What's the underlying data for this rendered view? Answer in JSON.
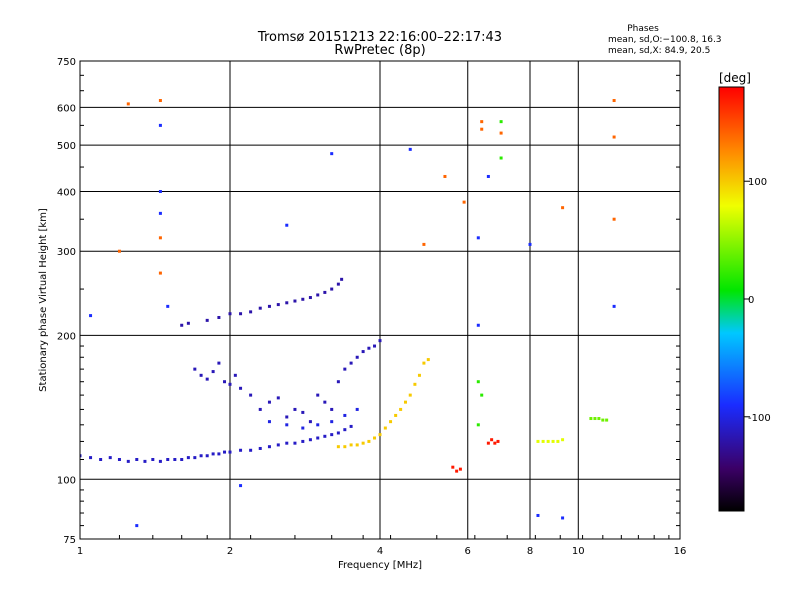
{
  "header": {
    "title_line1": "Tromsø 20151213 22:16:00–22:17:43",
    "title_line2": "RwPretec (8p)",
    "stats_title": "Phases",
    "stats_o": "mean, sd,O:−100.8, 16.3",
    "stats_x": "mean, sd,X: 84.9, 20.5"
  },
  "chart_data": {
    "type": "scatter",
    "xlabel": "Frequency [MHz]",
    "ylabel": "Stationary phase Virtual Height [km]",
    "x_scale": "log2",
    "y_scale": "log",
    "xlim": [
      1,
      16
    ],
    "ylim": [
      75,
      750
    ],
    "x_ticks": [
      1,
      2,
      4,
      6,
      8,
      10,
      16
    ],
    "y_ticks": [
      75,
      100,
      200,
      300,
      400,
      500,
      600,
      750
    ],
    "grid": true,
    "colorbar": {
      "label": "[deg]",
      "range": [
        -180,
        180
      ],
      "ticks": [
        -100,
        0,
        100
      ],
      "colormap": "rainbow (black-violet-blue-cyan-green-yellow-red)"
    },
    "series": [
      {
        "phase": -110,
        "points": [
          [
            1.0,
            112
          ],
          [
            1.05,
            111
          ],
          [
            1.1,
            110
          ],
          [
            1.15,
            111
          ],
          [
            1.2,
            110
          ],
          [
            1.25,
            109
          ],
          [
            1.3,
            110
          ],
          [
            1.35,
            109
          ],
          [
            1.4,
            110
          ],
          [
            1.45,
            109
          ],
          [
            1.5,
            110
          ],
          [
            1.55,
            110
          ],
          [
            1.6,
            110
          ],
          [
            1.65,
            111
          ],
          [
            1.7,
            111
          ],
          [
            1.75,
            112
          ],
          [
            1.8,
            112
          ],
          [
            1.85,
            113
          ],
          [
            1.9,
            113
          ],
          [
            1.95,
            114
          ],
          [
            2.0,
            114
          ],
          [
            2.1,
            115
          ],
          [
            2.2,
            115
          ],
          [
            2.3,
            116
          ],
          [
            2.4,
            117
          ],
          [
            2.5,
            118
          ],
          [
            2.6,
            119
          ],
          [
            2.7,
            119
          ],
          [
            2.8,
            120
          ],
          [
            2.9,
            121
          ],
          [
            3.0,
            122
          ],
          [
            3.1,
            123
          ],
          [
            3.2,
            124
          ],
          [
            3.3,
            125
          ],
          [
            3.4,
            127
          ],
          [
            3.5,
            129
          ]
        ]
      },
      {
        "phase": -120,
        "points": [
          [
            1.6,
            210
          ],
          [
            1.65,
            212
          ],
          [
            1.8,
            215
          ],
          [
            1.9,
            218
          ],
          [
            2.0,
            222
          ],
          [
            2.1,
            222
          ],
          [
            2.2,
            224
          ],
          [
            2.3,
            228
          ],
          [
            2.4,
            230
          ],
          [
            2.5,
            232
          ],
          [
            2.6,
            234
          ],
          [
            2.7,
            236
          ],
          [
            2.8,
            238
          ],
          [
            2.9,
            240
          ],
          [
            3.0,
            243
          ],
          [
            3.1,
            246
          ],
          [
            3.2,
            250
          ],
          [
            3.3,
            256
          ],
          [
            3.35,
            262
          ]
        ]
      },
      {
        "phase": -115,
        "points": [
          [
            1.7,
            170
          ],
          [
            1.75,
            165
          ],
          [
            1.8,
            162
          ],
          [
            1.85,
            168
          ],
          [
            1.9,
            175
          ],
          [
            1.95,
            160
          ],
          [
            2.0,
            158
          ],
          [
            2.05,
            165
          ],
          [
            2.1,
            155
          ],
          [
            2.2,
            150
          ],
          [
            2.3,
            140
          ],
          [
            2.4,
            145
          ],
          [
            2.5,
            148
          ],
          [
            2.6,
            135
          ],
          [
            2.7,
            140
          ],
          [
            2.8,
            138
          ],
          [
            2.9,
            132
          ],
          [
            3.0,
            150
          ],
          [
            3.1,
            145
          ],
          [
            3.2,
            140
          ],
          [
            3.3,
            160
          ],
          [
            3.4,
            170
          ],
          [
            3.5,
            175
          ],
          [
            3.6,
            180
          ],
          [
            3.7,
            185
          ],
          [
            3.8,
            188
          ],
          [
            3.9,
            190
          ],
          [
            4.0,
            195
          ]
        ]
      },
      {
        "phase": 100,
        "points": [
          [
            3.3,
            117
          ],
          [
            3.4,
            117
          ],
          [
            3.5,
            118
          ],
          [
            3.6,
            118
          ],
          [
            3.7,
            119
          ],
          [
            3.8,
            120
          ],
          [
            3.9,
            122
          ],
          [
            4.0,
            124
          ],
          [
            4.1,
            128
          ],
          [
            4.2,
            132
          ],
          [
            4.3,
            136
          ],
          [
            4.4,
            140
          ],
          [
            4.5,
            145
          ],
          [
            4.6,
            150
          ],
          [
            4.7,
            158
          ],
          [
            4.8,
            165
          ],
          [
            4.9,
            175
          ],
          [
            5.0,
            178
          ]
        ]
      },
      {
        "phase": -100,
        "points": [
          [
            2.4,
            132
          ],
          [
            2.6,
            130
          ],
          [
            2.8,
            128
          ],
          [
            3.0,
            130
          ],
          [
            3.2,
            132
          ],
          [
            3.4,
            136
          ],
          [
            3.6,
            140
          ]
        ]
      },
      {
        "phase": 170,
        "points": [
          [
            5.6,
            106
          ],
          [
            5.7,
            104
          ],
          [
            5.8,
            105
          ],
          [
            6.6,
            119
          ],
          [
            6.7,
            121
          ],
          [
            6.8,
            119
          ],
          [
            6.9,
            120
          ]
        ]
      },
      {
        "phase": 75,
        "points": [
          [
            8.3,
            120
          ],
          [
            8.5,
            120
          ],
          [
            8.7,
            120
          ],
          [
            8.9,
            120
          ],
          [
            9.1,
            120
          ],
          [
            9.3,
            121
          ]
        ]
      },
      {
        "phase": 40,
        "points": [
          [
            10.6,
            134
          ],
          [
            10.8,
            134
          ],
          [
            11.0,
            134
          ],
          [
            11.2,
            133
          ],
          [
            11.4,
            133
          ]
        ]
      },
      {
        "phase": -90,
        "points": [
          [
            1.45,
            550
          ],
          [
            1.45,
            400
          ],
          [
            1.45,
            360
          ],
          [
            2.6,
            340
          ],
          [
            3.2,
            480
          ],
          [
            4.6,
            490
          ],
          [
            1.5,
            230
          ],
          [
            1.3,
            80
          ],
          [
            2.1,
            97
          ],
          [
            8.3,
            84
          ],
          [
            9.3,
            83
          ],
          [
            6.3,
            320
          ],
          [
            6.6,
            430
          ],
          [
            8.0,
            310
          ],
          [
            11.8,
            230
          ],
          [
            1.05,
            220
          ],
          [
            6.3,
            210
          ]
        ]
      },
      {
        "phase": 140,
        "points": [
          [
            1.25,
            610
          ],
          [
            1.45,
            620
          ],
          [
            6.4,
            560
          ],
          [
            6.4,
            540
          ],
          [
            7.0,
            530
          ],
          [
            5.4,
            430
          ],
          [
            5.9,
            380
          ],
          [
            9.3,
            370
          ],
          [
            11.8,
            350
          ],
          [
            11.8,
            620
          ],
          [
            11.8,
            520
          ],
          [
            4.9,
            310
          ],
          [
            1.2,
            300
          ],
          [
            1.45,
            320
          ],
          [
            1.45,
            270
          ]
        ]
      },
      {
        "phase": 20,
        "points": [
          [
            7.0,
            560
          ],
          [
            6.4,
            150
          ],
          [
            6.3,
            160
          ],
          [
            6.3,
            130
          ],
          [
            7.0,
            470
          ]
        ]
      }
    ]
  }
}
